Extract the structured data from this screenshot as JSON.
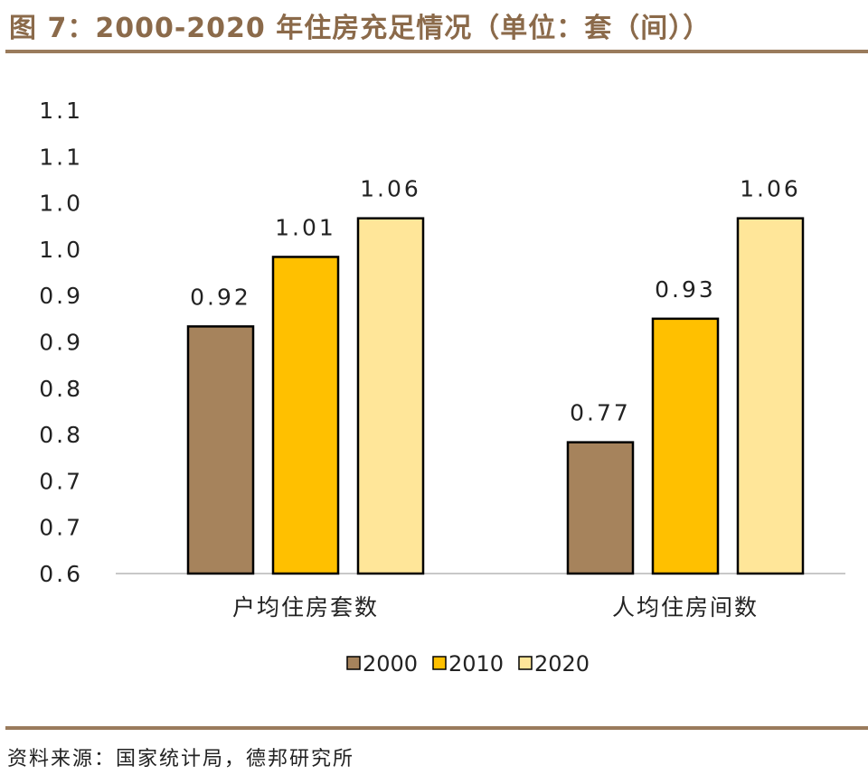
{
  "title": "图 7：2000-2020 年住房充足情况（单位：套（间））",
  "source": "资料来源：国家统计局，德邦研究所",
  "chart_data": {
    "type": "bar",
    "categories": [
      "户均住房套数",
      "人均住房间数"
    ],
    "series": [
      {
        "name": "2000",
        "values": [
          0.92,
          0.77
        ],
        "color": "#A6835C"
      },
      {
        "name": "2010",
        "values": [
          1.01,
          0.93
        ],
        "color": "#FFC000"
      },
      {
        "name": "2020",
        "values": [
          1.06,
          1.06
        ],
        "color": "#FFE699"
      }
    ],
    "ylim": [
      0.6,
      1.1
    ],
    "yticks": [
      "1.1",
      "1.1",
      "1.0",
      "1.0",
      "0.9",
      "0.9",
      "0.8",
      "0.8",
      "0.7",
      "0.7",
      "0.6"
    ],
    "legend_position": "bottom",
    "grid": false
  }
}
